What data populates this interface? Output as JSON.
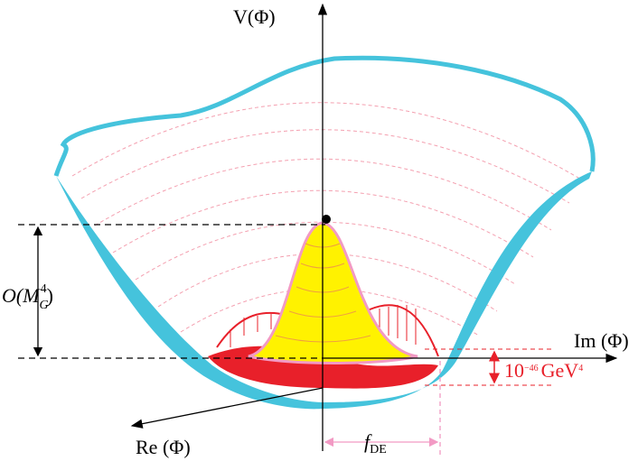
{
  "axes": {
    "vertical": "V(Φ)",
    "real": "Re (Φ)",
    "imaginary": "Im (Φ)"
  },
  "labels": {
    "height": {
      "base": "O(M",
      "sub": "G",
      "sup": "4",
      "end": ")"
    },
    "decay_constant": {
      "base": "f",
      "sub": "DE"
    },
    "energy_gap": {
      "base": "10",
      "sup": "−46",
      "unit": "GeV",
      "unit_sup": "4"
    }
  }
}
